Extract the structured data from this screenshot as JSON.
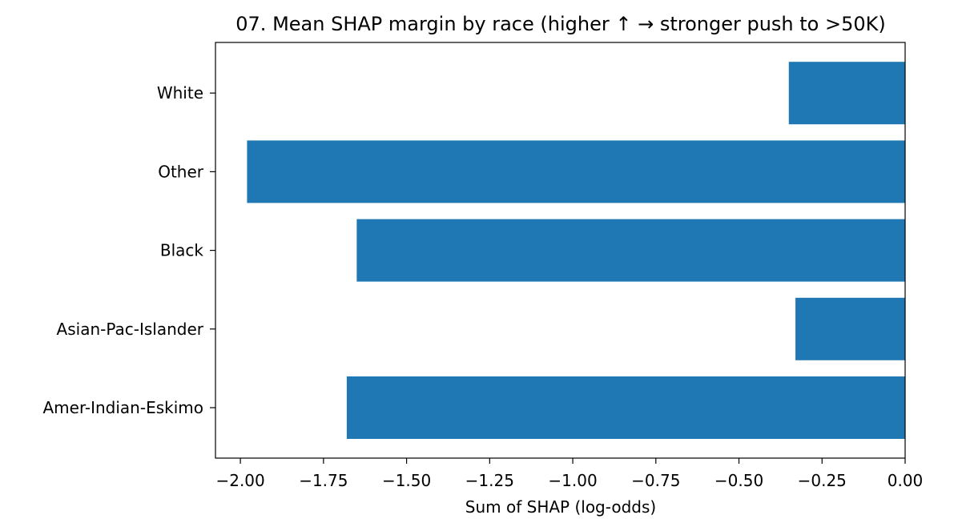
{
  "chart_data": {
    "type": "bar",
    "orientation": "horizontal",
    "title": "07. Mean SHAP margin by race (higher ↑ → stronger push to >50K)",
    "xlabel": "Sum of SHAP (log-odds)",
    "ylabel": "",
    "categories": [
      "Amer-Indian-Eskimo",
      "Asian-Pac-Islander",
      "Black",
      "Other",
      "White"
    ],
    "values": [
      -1.68,
      -0.33,
      -1.65,
      -1.98,
      -0.35
    ],
    "xlim": [
      -2.075,
      0.0
    ],
    "xticks": [
      -2.0,
      -1.75,
      -1.5,
      -1.25,
      -1.0,
      -0.75,
      -0.5,
      -0.25,
      0.0
    ],
    "xtick_labels": [
      "−2.00",
      "−1.75",
      "−1.50",
      "−1.25",
      "−1.00",
      "−0.75",
      "−0.50",
      "−0.25",
      "0.00"
    ],
    "bar_color": "#1f77b4",
    "grid": false,
    "legend": "none"
  }
}
